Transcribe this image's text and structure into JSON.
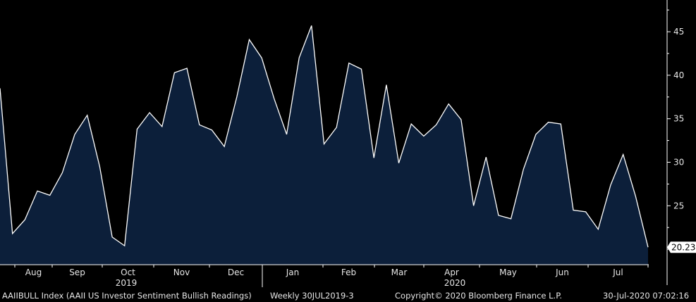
{
  "chart_data": {
    "type": "area",
    "x_ticks": [
      "Aug",
      "Sep",
      "Oct",
      "Nov",
      "Dec",
      "Jan",
      "Feb",
      "Mar",
      "Apr",
      "May",
      "Jun",
      "Jul"
    ],
    "year_labels": [
      "2019",
      "2020"
    ],
    "y_ticks": [
      25,
      30,
      35,
      40,
      45
    ],
    "ylim": [
      17.5,
      48
    ],
    "grid": false,
    "last_value_label": "20.23",
    "values": [
      38.5,
      21.8,
      23.4,
      26.7,
      26.2,
      28.8,
      33.2,
      35.4,
      29.5,
      21.4,
      20.4,
      33.8,
      35.7,
      34.1,
      40.3,
      40.8,
      34.3,
      33.7,
      31.8,
      37.5,
      44.1,
      42.0,
      37.3,
      33.2,
      42.0,
      45.7,
      32.1,
      34.0,
      41.4,
      40.7,
      30.5,
      38.9,
      29.9,
      34.4,
      33.0,
      34.3,
      36.7,
      34.9,
      25.0,
      30.6,
      23.9,
      23.5,
      29.2,
      33.2,
      34.6,
      34.4,
      24.5,
      24.3,
      22.3,
      27.4,
      30.9,
      26.1,
      20.23
    ],
    "colors": {
      "fill": "#0c1f3a",
      "line": "#ffffff",
      "axis": "#ffffff",
      "background": "#000000"
    }
  },
  "footer": {
    "index_label": "AAIIBULL Index (AAII US Investor Sentiment Bullish Readings)",
    "period": "Weekly 30JUL2019-3",
    "copyright": "Copyright© 2020 Bloomberg Finance L.P.",
    "timestamp": "30-Jul-2020 07:02:16"
  }
}
